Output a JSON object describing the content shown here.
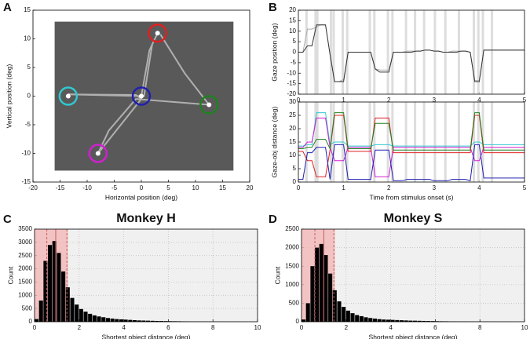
{
  "chart_data": [
    {
      "type": "scatter",
      "panel": "A",
      "xlabel": "Horizontal position (deg)",
      "ylabel": "Vertical position (deg)",
      "xlim": [
        -20,
        20
      ],
      "ylim": [
        -15,
        15
      ],
      "xticks": [
        -20,
        -15,
        -10,
        -5,
        0,
        5,
        10,
        15,
        20
      ],
      "yticks": [
        -15,
        -10,
        -5,
        0,
        5,
        10,
        15
      ],
      "background": "#ffffff",
      "image_extent": [
        -16,
        17,
        -13,
        13
      ],
      "image_color": "#595959",
      "gaze": {
        "color": "#b0b0b0",
        "x": [
          0,
          1.5,
          3,
          2,
          0.5,
          -13.5,
          -1,
          0,
          -8,
          -6,
          -1,
          12.5,
          8,
          3.5
        ],
        "y": [
          0,
          8,
          11,
          9,
          0,
          0.3,
          0.2,
          -0.5,
          -10,
          -6,
          -0.5,
          -1.5,
          4,
          10.8
        ]
      },
      "objects": {
        "x": [
          3,
          -13.5,
          0,
          12.5,
          -8
        ],
        "y": [
          11,
          0,
          0,
          -1.5,
          -10
        ],
        "colors": [
          "#e02020",
          "#30c8d0",
          "#2020b0",
          "#208020",
          "#d020d0"
        ]
      }
    },
    {
      "type": "line",
      "panel": "B",
      "ylabel": "Gaze position (deg)",
      "xlim": [
        0,
        5
      ],
      "ylim": [
        -20,
        20
      ],
      "xticks": [
        0,
        1,
        2,
        3,
        4,
        5
      ],
      "yticks": [
        -20,
        -15,
        -10,
        -5,
        0,
        5,
        10,
        15,
        20
      ],
      "background": "#ffffff",
      "event_color": "#dddddd",
      "event_x": [
        0.18,
        0.38,
        0.42,
        0.72,
        0.78,
        0.98,
        1.08,
        1.58,
        1.68,
        1.98,
        2.08,
        2.38,
        2.58,
        2.78,
        3.02,
        3.25,
        3.55,
        3.88,
        3.98,
        4.08,
        4.28
      ],
      "x": [
        0,
        0.1,
        0.2,
        0.3,
        0.4,
        0.5,
        0.6,
        0.7,
        0.8,
        0.9,
        1.0,
        1.1,
        1.2,
        1.3,
        1.4,
        1.5,
        1.6,
        1.7,
        1.8,
        1.9,
        2.0,
        2.1,
        2.2,
        2.3,
        2.4,
        2.5,
        2.6,
        2.7,
        2.8,
        2.9,
        3.0,
        3.1,
        3.2,
        3.3,
        3.4,
        3.5,
        3.6,
        3.7,
        3.8,
        3.9,
        4.0,
        4.1,
        4.2,
        4.3,
        4.4,
        4.5,
        4.6,
        4.7,
        4.8,
        4.9,
        5.0
      ],
      "series": [
        {
          "color": "#aaaaaa",
          "values": [
            0,
            0,
            11,
            11,
            12,
            13,
            13,
            -1,
            -14,
            -14,
            -13,
            0,
            0,
            0,
            0,
            0,
            0,
            -8,
            -8.5,
            -8.5,
            -8.5,
            0,
            0,
            0,
            0.5,
            0.5,
            0.5,
            0.5,
            1,
            1,
            0.5,
            0.5,
            0,
            0,
            0.5,
            0.5,
            0.5,
            0.5,
            0,
            -13.5,
            -13.5,
            1,
            1,
            1,
            1,
            1,
            1,
            1,
            1,
            1,
            1
          ]
        },
        {
          "color": "#333333",
          "values": [
            0,
            0,
            3,
            3,
            13,
            13,
            13,
            -1,
            -14,
            -14,
            -14,
            0,
            0,
            0,
            0,
            0,
            0,
            -8,
            -9.5,
            -9.5,
            -9.5,
            0,
            0,
            0,
            0,
            0,
            0.5,
            0.5,
            1,
            1,
            0.5,
            0.5,
            0,
            0,
            0,
            0,
            0.5,
            0.5,
            0,
            -14,
            -14,
            1,
            1,
            1,
            1,
            1,
            1,
            1,
            1,
            1,
            1
          ]
        }
      ]
    },
    {
      "type": "line",
      "xlabel": "Time from stimulus onset (s)",
      "ylabel": "Gaze-obj distance (deg)",
      "xlim": [
        0,
        5
      ],
      "ylim": [
        0,
        30
      ],
      "xticks": [
        0,
        1,
        2,
        3,
        4,
        5
      ],
      "yticks": [
        0,
        5,
        10,
        15,
        20,
        25,
        30
      ],
      "background": "#ffffff",
      "event_color": "#dddddd",
      "event_x": [
        0.18,
        0.38,
        0.42,
        0.72,
        0.78,
        0.98,
        1.08,
        1.58,
        1.68,
        1.98,
        2.08,
        2.38,
        2.58,
        2.78,
        3.02,
        3.25,
        3.55,
        3.88,
        3.98,
        4.08,
        4.28
      ],
      "x": [
        0,
        0.1,
        0.2,
        0.3,
        0.4,
        0.5,
        0.6,
        0.7,
        0.8,
        0.9,
        1.0,
        1.1,
        1.2,
        1.3,
        1.4,
        1.5,
        1.6,
        1.7,
        1.8,
        1.9,
        2.0,
        2.1,
        2.2,
        2.3,
        2.4,
        2.5,
        2.6,
        2.7,
        2.8,
        2.9,
        3.0,
        3.1,
        3.2,
        3.3,
        3.4,
        3.5,
        3.6,
        3.7,
        3.8,
        3.9,
        4.0,
        4.1,
        4.2,
        4.3,
        4.4,
        4.5,
        4.6,
        4.7,
        4.8,
        4.9,
        5.0
      ],
      "series": [
        {
          "color": "#30c8d0",
          "values": [
            13.5,
            13.5,
            14,
            14,
            26,
            26,
            26,
            14,
            15,
            15,
            15,
            13.5,
            13.5,
            13.5,
            13.5,
            13.5,
            13.5,
            14,
            14,
            14,
            14,
            13.5,
            13.5,
            13.5,
            13.5,
            13.5,
            13.5,
            13.5,
            13.5,
            13.5,
            13.5,
            13.5,
            13.5,
            13.5,
            13.5,
            13.5,
            13.5,
            13.5,
            13.5,
            15,
            15,
            14,
            14,
            14,
            14,
            14,
            14,
            14,
            14,
            14,
            14
          ]
        },
        {
          "color": "#d020d0",
          "values": [
            13,
            13,
            15,
            15,
            24,
            24,
            24,
            13,
            8,
            8,
            8,
            13,
            13,
            13,
            13,
            13,
            13,
            2,
            2,
            2,
            2,
            13,
            13,
            13,
            13,
            13,
            13,
            13,
            13,
            13,
            13,
            13,
            13,
            13,
            13,
            13,
            13,
            13,
            13,
            8,
            8,
            13,
            13,
            13,
            13,
            13,
            13,
            13,
            13,
            13,
            13
          ]
        },
        {
          "color": "#e02020",
          "values": [
            11.5,
            11.5,
            8,
            8,
            2,
            2,
            2,
            12,
            25,
            25,
            25,
            11.5,
            11.5,
            11.5,
            11.5,
            11.5,
            11.5,
            24,
            24,
            24,
            24,
            11,
            11,
            11,
            11,
            11,
            11,
            11,
            11,
            11,
            11,
            11,
            11,
            11,
            11,
            11,
            11,
            11,
            11,
            25,
            25,
            11,
            11,
            11,
            11,
            11,
            11,
            11,
            11,
            11,
            11
          ]
        },
        {
          "color": "#208020",
          "values": [
            12.5,
            12.5,
            13,
            13,
            16,
            16,
            16,
            12.5,
            26,
            26,
            26,
            12.5,
            12.5,
            12.5,
            12.5,
            12.5,
            12.5,
            22,
            22,
            22,
            22,
            12,
            12,
            12,
            12,
            12,
            12,
            12,
            12,
            12,
            12,
            12,
            12,
            12,
            12,
            12,
            12,
            12,
            12,
            26,
            26,
            12,
            12,
            12,
            12,
            12,
            12,
            12,
            12,
            12,
            12
          ]
        },
        {
          "color": "#2020b0",
          "values": [
            1,
            1,
            11,
            11,
            13,
            13,
            13,
            1,
            14,
            14,
            14,
            1,
            1,
            1,
            1,
            1,
            1,
            12,
            12,
            12,
            12,
            0.5,
            0.5,
            0.5,
            1,
            1,
            1,
            1,
            1,
            1,
            0.5,
            0.5,
            0.5,
            0.5,
            1,
            1,
            1,
            1,
            0.5,
            14,
            14,
            1.5,
            1.5,
            1.5,
            1.5,
            1.5,
            1.5,
            1.5,
            1.5,
            1.5,
            1.5
          ]
        }
      ]
    },
    {
      "type": "histogram",
      "panel": "C",
      "title": "Monkey H",
      "xlabel": "Shortest object distance (deg)",
      "ylabel": "Count",
      "xlim": [
        0,
        10
      ],
      "ylim": [
        0,
        3500
      ],
      "xticks": [
        0,
        2,
        4,
        6,
        8,
        10
      ],
      "yticks": [
        0,
        500,
        1000,
        1500,
        2000,
        2500,
        3000,
        3500
      ],
      "background": "#f0f0f0",
      "grid": true,
      "color": "#000000",
      "shade_color": "#f4b8b8",
      "shade_x": [
        0,
        1.5
      ],
      "median_x": 0.95,
      "quartile_x": [
        0.55,
        1.45
      ],
      "bins": [
        0,
        0.2,
        0.4,
        0.6,
        0.8,
        1.0,
        1.2,
        1.4,
        1.6,
        1.8,
        2.0,
        2.2,
        2.4,
        2.6,
        2.8,
        3.0,
        3.2,
        3.4,
        3.6,
        3.8,
        4.0,
        4.2,
        4.4,
        4.6,
        4.8,
        5.0,
        5.2,
        5.4,
        5.6,
        5.8,
        6.0,
        6.2,
        6.4,
        6.6,
        6.8,
        7.0,
        7.2,
        7.4,
        7.6,
        7.8,
        8.0,
        8.2,
        8.4,
        8.6,
        8.8,
        9.0,
        9.2,
        9.4,
        9.6,
        9.8,
        10.0
      ],
      "values": [
        100,
        800,
        2300,
        2900,
        3050,
        2600,
        1900,
        1300,
        900,
        650,
        480,
        380,
        300,
        240,
        200,
        170,
        140,
        120,
        100,
        90,
        80,
        70,
        60,
        50,
        45,
        40,
        35,
        30,
        28,
        25,
        22,
        20,
        18,
        15,
        12,
        10,
        9,
        8,
        7,
        6,
        5,
        4,
        4,
        3,
        3,
        2,
        2,
        1,
        1,
        1
      ]
    },
    {
      "type": "histogram",
      "panel": "D",
      "title": "Monkey S",
      "xlabel": "Shortest object distance (deg)",
      "ylabel": "Count",
      "xlim": [
        0,
        10
      ],
      "ylim": [
        0,
        2500
      ],
      "xticks": [
        0,
        2,
        4,
        6,
        8,
        10
      ],
      "yticks": [
        0,
        500,
        1000,
        1500,
        2000,
        2500
      ],
      "background": "#f0f0f0",
      "grid": true,
      "color": "#000000",
      "shade_color": "#f4b8b8",
      "shade_x": [
        0,
        1.5
      ],
      "median_x": 1.0,
      "quartile_x": [
        0.6,
        1.45
      ],
      "bins": [
        0,
        0.2,
        0.4,
        0.6,
        0.8,
        1.0,
        1.2,
        1.4,
        1.6,
        1.8,
        2.0,
        2.2,
        2.4,
        2.6,
        2.8,
        3.0,
        3.2,
        3.4,
        3.6,
        3.8,
        4.0,
        4.2,
        4.4,
        4.6,
        4.8,
        5.0,
        5.2,
        5.4,
        5.6,
        5.8,
        6.0,
        6.2,
        6.4,
        6.6,
        6.8,
        7.0,
        7.2,
        7.4,
        7.6,
        7.8,
        8.0,
        8.2,
        8.4,
        8.6,
        8.8,
        9.0,
        9.2,
        9.4,
        9.6,
        9.8,
        10.0
      ],
      "values": [
        60,
        500,
        1500,
        2000,
        2100,
        1800,
        1300,
        850,
        550,
        400,
        300,
        230,
        180,
        150,
        120,
        100,
        85,
        70,
        60,
        55,
        50,
        45,
        40,
        35,
        30,
        28,
        25,
        22,
        20,
        18,
        15,
        13,
        12,
        10,
        9,
        8,
        7,
        6,
        5,
        5,
        4,
        4,
        3,
        3,
        2,
        2,
        2,
        1,
        1,
        1
      ]
    }
  ]
}
